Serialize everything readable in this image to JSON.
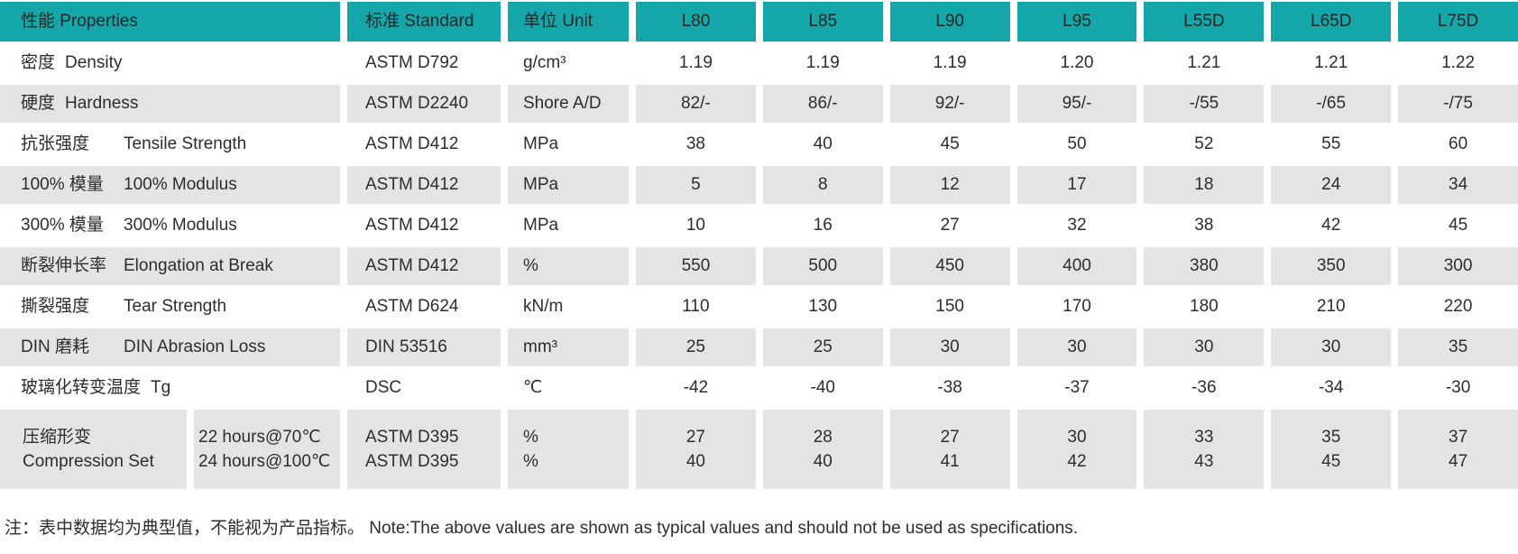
{
  "table": {
    "header": {
      "properties": "性能 Properties",
      "standard": "标准 Standard",
      "unit": "单位 Unit",
      "grades": [
        "L80",
        "L85",
        "L90",
        "L95",
        "L55D",
        "L65D",
        "L75D"
      ]
    },
    "rows": [
      {
        "zh": "密度",
        "en": "Density",
        "standard": "ASTM D792",
        "unit": "g/cm³",
        "values": [
          "1.19",
          "1.19",
          "1.19",
          "1.20",
          "1.21",
          "1.21",
          "1.22"
        ]
      },
      {
        "zh": "硬度",
        "en": "Hardness",
        "standard": "ASTM D2240",
        "unit": "Shore A/D",
        "values": [
          "82/-",
          "86/-",
          "92/-",
          "95/-",
          "-/55",
          "-/65",
          "-/75"
        ]
      },
      {
        "zh": "抗张强度",
        "en": "Tensile Strength",
        "standard": "ASTM D412",
        "unit": "MPa",
        "values": [
          "38",
          "40",
          "45",
          "50",
          "52",
          "55",
          "60"
        ]
      },
      {
        "zh": "100% 模量",
        "en": "100% Modulus",
        "standard": "ASTM D412",
        "unit": "MPa",
        "values": [
          "5",
          "8",
          "12",
          "17",
          "18",
          "24",
          "34"
        ]
      },
      {
        "zh": "300% 模量",
        "en": "300% Modulus",
        "standard": "ASTM D412",
        "unit": "MPa",
        "values": [
          "10",
          "16",
          "27",
          "32",
          "38",
          "42",
          "45"
        ]
      },
      {
        "zh": "断裂伸长率",
        "en": "Elongation at Break",
        "standard": "ASTM D412",
        "unit": "%",
        "values": [
          "550",
          "500",
          "450",
          "400",
          "380",
          "350",
          "300"
        ]
      },
      {
        "zh": "撕裂强度",
        "en": "Tear Strength",
        "standard": "ASTM D624",
        "unit": "kN/m",
        "values": [
          "110",
          "130",
          "150",
          "170",
          "180",
          "210",
          "220"
        ]
      },
      {
        "zh": "DIN 磨耗",
        "en": "DIN Abrasion Loss",
        "standard": "DIN 53516",
        "unit": "mm³",
        "values": [
          "25",
          "25",
          "30",
          "30",
          "30",
          "30",
          "35"
        ]
      },
      {
        "zh": "玻璃化转变温度",
        "en": "Tg",
        "standard": "DSC",
        "unit": "℃",
        "values": [
          "-42",
          "-40",
          "-38",
          "-37",
          "-36",
          "-34",
          "-30"
        ]
      }
    ],
    "compression_row": {
      "zh": "压缩形变",
      "en": "Compression Set",
      "conditions": [
        "22 hours@70℃",
        "24 hours@100℃"
      ],
      "standards": [
        "ASTM D395",
        "ASTM D395"
      ],
      "units": [
        "%",
        "%"
      ],
      "values": [
        [
          "27",
          "40"
        ],
        [
          "28",
          "40"
        ],
        [
          "27",
          "41"
        ],
        [
          "30",
          "42"
        ],
        [
          "33",
          "43"
        ],
        [
          "35",
          "45"
        ],
        [
          "37",
          "47"
        ]
      ]
    }
  },
  "footnote": "注：表中数据均为典型值，不能视为产品指标。 Note:The above values are shown as typical values and should not be used as specifications.",
  "colors": {
    "header_teal": "#14a6a9",
    "row_gray": "#e4e4e6"
  }
}
